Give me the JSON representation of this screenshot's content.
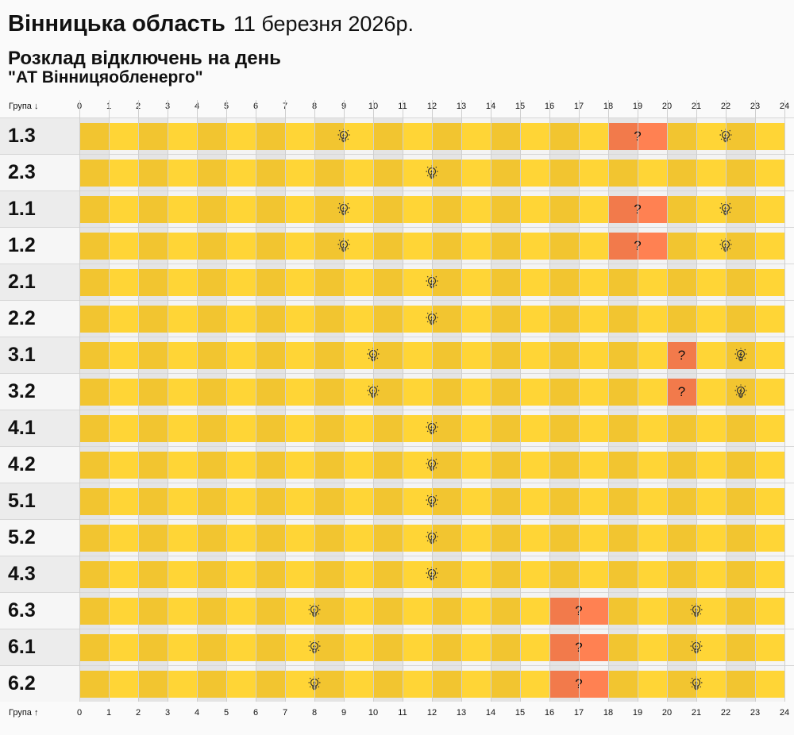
{
  "header": {
    "title": "Вінницька область",
    "date": "11 березня 2026р.",
    "subtitle": "Розклад відключень на день",
    "company": "\"АТ Вінницяобленерго\""
  },
  "axis": {
    "top_label": "Група ↓",
    "bottom_label": "Група ↑",
    "hours": [
      0,
      1,
      2,
      3,
      4,
      5,
      6,
      7,
      8,
      9,
      10,
      11,
      12,
      13,
      14,
      15,
      16,
      17,
      18,
      19,
      20,
      21,
      22,
      23,
      24
    ]
  },
  "colors": {
    "on_dark": "#f2c530",
    "on_light": "#ffd536",
    "unknown_dark": "#f27a4b",
    "unknown_light": "#ff8152",
    "bg_dark": "#e4e4e4",
    "bg_light": "#f4f4f4"
  },
  "legend_icons": {
    "on": "lightbulb-icon",
    "unknown": "question-mark"
  },
  "rows": [
    {
      "group": "1.3",
      "icons": [
        9,
        22
      ],
      "unknown": [
        [
          18,
          20
        ]
      ],
      "q": [
        19
      ]
    },
    {
      "group": "2.3",
      "icons": [
        12
      ],
      "unknown": [],
      "q": []
    },
    {
      "group": "1.1",
      "icons": [
        9,
        22
      ],
      "unknown": [
        [
          18,
          20
        ]
      ],
      "q": [
        19
      ]
    },
    {
      "group": "1.2",
      "icons": [
        9,
        22
      ],
      "unknown": [
        [
          18,
          20
        ]
      ],
      "q": [
        19
      ]
    },
    {
      "group": "2.1",
      "icons": [
        12
      ],
      "unknown": [],
      "q": []
    },
    {
      "group": "2.2",
      "icons": [
        12
      ],
      "unknown": [],
      "q": []
    },
    {
      "group": "3.1",
      "icons": [
        10,
        22.5
      ],
      "unknown": [
        [
          20,
          21
        ]
      ],
      "q": [
        20.5
      ]
    },
    {
      "group": "3.2",
      "icons": [
        10,
        22.5
      ],
      "unknown": [
        [
          20,
          21
        ]
      ],
      "q": [
        20.5
      ]
    },
    {
      "group": "4.1",
      "icons": [
        12
      ],
      "unknown": [],
      "q": []
    },
    {
      "group": "4.2",
      "icons": [
        12
      ],
      "unknown": [],
      "q": []
    },
    {
      "group": "5.1",
      "icons": [
        12
      ],
      "unknown": [],
      "q": []
    },
    {
      "group": "5.2",
      "icons": [
        12
      ],
      "unknown": [],
      "q": []
    },
    {
      "group": "4.3",
      "icons": [
        12
      ],
      "unknown": [],
      "q": []
    },
    {
      "group": "6.3",
      "icons": [
        8,
        21
      ],
      "unknown": [
        [
          16,
          18
        ]
      ],
      "q": [
        17
      ]
    },
    {
      "group": "6.1",
      "icons": [
        8,
        21
      ],
      "unknown": [
        [
          16,
          18
        ]
      ],
      "q": [
        17
      ]
    },
    {
      "group": "6.2",
      "icons": [
        8,
        21
      ],
      "unknown": [
        [
          16,
          18
        ]
      ],
      "q": [
        17
      ]
    }
  ],
  "q_symbol": "?"
}
